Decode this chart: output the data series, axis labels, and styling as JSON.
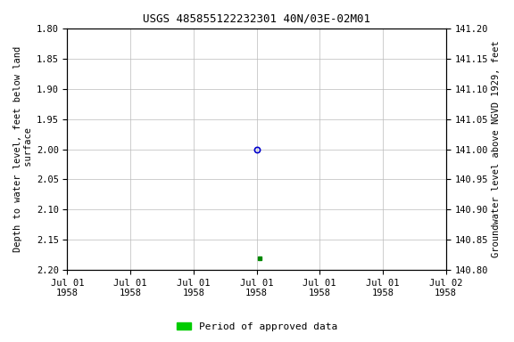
{
  "title": "USGS 485855122232301 40N/03E-02M01",
  "ylabel_left": "Depth to water level, feet below land\n surface",
  "ylabel_right": "Groundwater level above NGVD 1929, feet",
  "ylim_left": [
    1.8,
    2.2
  ],
  "ylim_right": [
    141.2,
    140.8
  ],
  "yticks_left": [
    1.8,
    1.85,
    1.9,
    1.95,
    2.0,
    2.05,
    2.1,
    2.15,
    2.2
  ],
  "yticks_right": [
    141.2,
    141.15,
    141.1,
    141.05,
    141.0,
    140.95,
    140.9,
    140.85,
    140.8
  ],
  "data_blue_x": 3.0,
  "data_blue_y": 2.0,
  "data_green_x": 3.05,
  "data_green_y": 2.18,
  "xlim": [
    0,
    6
  ],
  "xtick_positions": [
    0,
    1,
    2,
    3,
    4,
    5,
    6
  ],
  "xtick_labels": [
    "Jul 01\n1958",
    "Jul 01\n1958",
    "Jul 01\n1958",
    "Jul 01\n1958",
    "Jul 01\n1958",
    "Jul 01\n1958",
    "Jul 02\n1958"
  ],
  "legend_label": "Period of approved data",
  "legend_color": "#00cc00",
  "background_color": "#ffffff",
  "grid_color": "#bbbbbb",
  "blue_marker_color": "#0000cc",
  "green_marker_color": "#008800",
  "title_fontsize": 9,
  "tick_fontsize": 7.5,
  "ylabel_fontsize": 7.5
}
